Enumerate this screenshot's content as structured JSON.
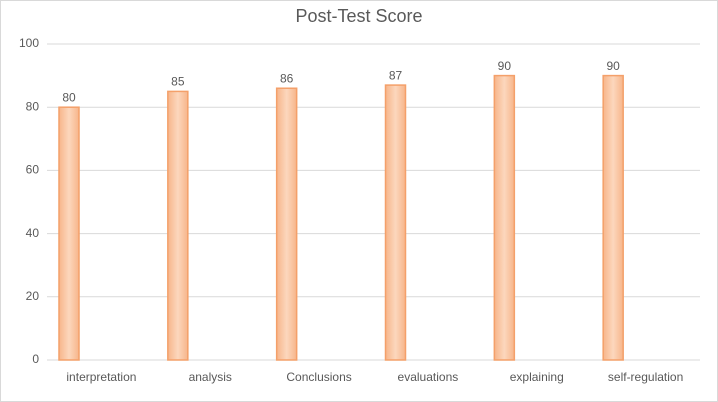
{
  "chart_data": {
    "type": "bar",
    "title": "Post-Test Score",
    "categories": [
      "interpretation",
      "analysis",
      "Conclusions",
      "evaluations",
      "explaining",
      "self-regulation"
    ],
    "values": [
      80,
      85,
      86,
      87,
      90,
      90
    ],
    "color": "#f9c6a2",
    "ylim": [
      0,
      100
    ],
    "yticks": [
      0,
      20,
      40,
      60,
      80,
      100
    ],
    "grid": true
  }
}
